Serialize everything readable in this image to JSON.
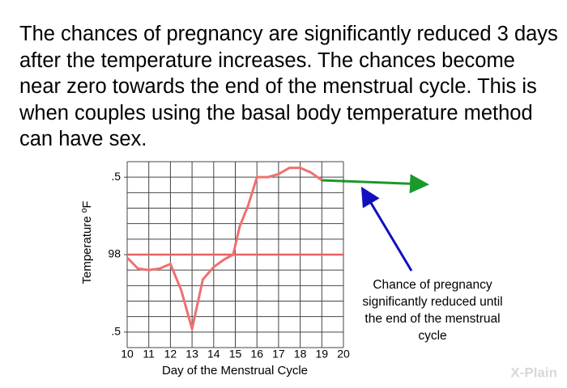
{
  "heading": "The chances of pregnancy are significantly reduced 3 days after the temperature increases. The chances become near zero towards the end of the menstrual cycle. This is when couples using the basal body temperature method can have sex.",
  "chart_data": {
    "type": "line",
    "xlabel": "Day of the Menstrual Cycle",
    "ylabel": "Temperature ºF",
    "annotation": "Chance of pregnancy significantly reduced until the end of the menstrual cycle",
    "x": [
      10,
      10.5,
      11,
      11.5,
      12,
      12.5,
      13,
      13.5,
      14,
      14.5,
      14.9,
      15.2,
      15.6,
      16,
      16.5,
      17,
      17.5,
      18,
      18.5,
      19
    ],
    "series": [
      {
        "name": "Temperature",
        "color": "#f07070",
        "values": [
          97.98,
          97.91,
          97.9,
          97.91,
          97.94,
          97.77,
          97.52,
          97.84,
          97.92,
          97.97,
          98.0,
          98.18,
          98.32,
          98.5,
          98.5,
          98.52,
          98.56,
          98.56,
          98.53,
          98.48
        ]
      }
    ],
    "xlim": [
      10,
      20
    ],
    "xticks": [
      10,
      11,
      12,
      13,
      14,
      15,
      16,
      17,
      18,
      19,
      20
    ],
    "ylim": [
      97.4,
      98.6
    ],
    "yticks": [
      {
        "value": 98.5,
        "label": ".5"
      },
      98,
      {
        "value": 97.5,
        "label": ".5"
      }
    ],
    "ygrid": [
      97.4,
      97.5,
      97.6,
      97.7,
      97.8,
      97.9,
      98.0,
      98.1,
      98.2,
      98.3,
      98.4,
      98.5,
      98.6
    ],
    "grid": true,
    "reference_line": 98,
    "reference_color": "#e86060"
  },
  "logo": "X-Plain"
}
